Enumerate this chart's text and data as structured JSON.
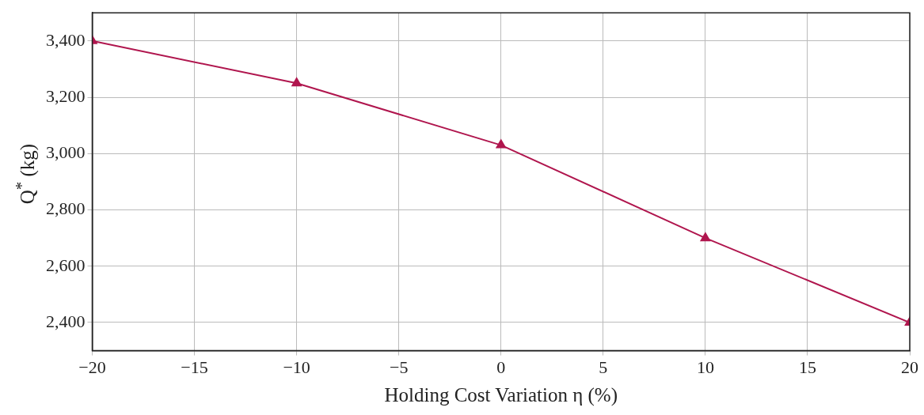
{
  "chart_data": {
    "type": "line",
    "xlabel": "Holding Cost Variation η (%)",
    "ylabel": "Q$^{*}$ (kg)",
    "x": [
      -20,
      -10,
      0,
      10,
      20
    ],
    "series": [
      {
        "color": "#b0164e",
        "values": [
          3400,
          3250,
          3030,
          2700,
          2400
        ]
      }
    ],
    "xlim": [
      -20,
      20
    ],
    "xticks": [
      {
        "value": -20,
        "label": "−20"
      },
      {
        "value": -15,
        "label": "−15"
      },
      {
        "value": -10,
        "label": "−10"
      },
      {
        "value": -5,
        "label": "−5"
      },
      0,
      5,
      10,
      15,
      20
    ],
    "ylim": [
      2300,
      3500
    ],
    "yticks": [
      {
        "value": 2400,
        "label": "2,400"
      },
      {
        "value": 2600,
        "label": "2,600"
      },
      {
        "value": 2800,
        "label": "2,800"
      },
      {
        "value": 3000,
        "label": "3,000"
      },
      {
        "value": 3200,
        "label": "3,200"
      },
      {
        "value": 3400,
        "label": "3,400"
      }
    ],
    "grid": true,
    "legend": false,
    "marker": "triangle",
    "line_style": "solid"
  }
}
